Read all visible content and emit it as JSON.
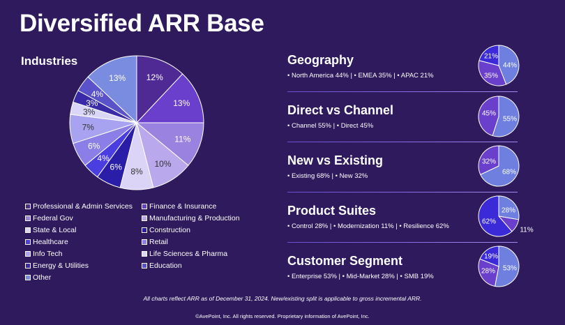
{
  "title": "Diversified ARR Base",
  "industries": {
    "title": "Industries",
    "legend": [
      {
        "label": "Professional & Admin Services",
        "color": "#4f2a94"
      },
      {
        "label": "Finance & Insurance",
        "color": "#6a3fcc"
      },
      {
        "label": "Federal Gov",
        "color": "#9a82e0"
      },
      {
        "label": "Manufacturing & Production",
        "color": "#b9a8ec"
      },
      {
        "label": "State & Local",
        "color": "#dcd4f6"
      },
      {
        "label": "Construction",
        "color": "#2a1ea8"
      },
      {
        "label": "Healthcare",
        "color": "#4b3ee0"
      },
      {
        "label": "Retail",
        "color": "#8b7ee6"
      },
      {
        "label": "Info Tech",
        "color": "#a8a3f0"
      },
      {
        "label": "Life Sciences & Pharma",
        "color": "#d9d6f8"
      },
      {
        "label": "Energy & Utilities",
        "color": "#3a2aa8"
      },
      {
        "label": "Education",
        "color": "#5a52c8"
      },
      {
        "label": "Other",
        "color": "#7a8ce0"
      }
    ]
  },
  "chart_data": [
    {
      "type": "pie",
      "title": "Industries",
      "categories": [
        "Professional & Admin Services",
        "Finance & Insurance",
        "Federal Gov",
        "Manufacturing & Production",
        "State & Local",
        "Construction",
        "Healthcare",
        "Retail",
        "Info Tech",
        "Life Sciences & Pharma",
        "Energy & Utilities",
        "Education",
        "Other"
      ],
      "values": [
        12,
        13,
        11,
        10,
        8,
        6,
        4,
        6,
        7,
        3,
        3,
        4,
        13
      ],
      "labels": [
        "12%",
        "13%",
        "11%",
        "10%",
        "8%",
        "6%",
        "4%",
        "6%",
        "7%",
        "3%",
        "3%",
        "4%",
        "13%"
      ],
      "colors": [
        "#4f2a94",
        "#6a3fcc",
        "#9a82e0",
        "#b9a8ec",
        "#dcd4f6",
        "#2a1ea8",
        "#4b3ee0",
        "#8b7ee6",
        "#a8a3f0",
        "#d9d6f8",
        "#3a2aa8",
        "#5a52c8",
        "#7a8ce0"
      ],
      "label_colors": [
        "#ffffff",
        "#ffffff",
        "#ffffff",
        "#333333",
        "#333333",
        "#ffffff",
        "#ffffff",
        "#ffffff",
        "#333333",
        "#333333",
        "#ffffff",
        "#ffffff",
        "#ffffff"
      ]
    },
    {
      "type": "pie",
      "title": "Geography",
      "categories": [
        "North America",
        "EMEA",
        "APAC"
      ],
      "values": [
        44,
        35,
        21
      ],
      "labels": [
        "44%",
        "35%",
        "21%"
      ],
      "colors": [
        "#6f7fe0",
        "#6a3fcc",
        "#3a2ad8"
      ]
    },
    {
      "type": "pie",
      "title": "Direct vs Channel",
      "categories": [
        "Channel",
        "Direct"
      ],
      "values": [
        55,
        45
      ],
      "labels": [
        "55%",
        "45%"
      ],
      "colors": [
        "#6f7fe0",
        "#6a3fcc"
      ]
    },
    {
      "type": "pie",
      "title": "New vs Existing",
      "categories": [
        "Existing",
        "New"
      ],
      "values": [
        68,
        32
      ],
      "labels": [
        "68%",
        "32%"
      ],
      "colors": [
        "#6f7fe0",
        "#6a3fcc"
      ]
    },
    {
      "type": "pie",
      "title": "Product Suites",
      "categories": [
        "Control",
        "Modernization",
        "Resilience"
      ],
      "values": [
        28,
        11,
        62
      ],
      "labels": [
        "28%",
        "11%",
        "62%"
      ],
      "colors": [
        "#6f7fe0",
        "#6a3fcc",
        "#3a2ad8"
      ]
    },
    {
      "type": "pie",
      "title": "Customer Segment",
      "categories": [
        "Enterprise",
        "Mid-Market",
        "SMB"
      ],
      "values": [
        53,
        28,
        19
      ],
      "labels": [
        "53%",
        "28%",
        "19%"
      ],
      "colors": [
        "#6f7fe0",
        "#6a3fcc",
        "#3a2ad8"
      ]
    }
  ],
  "panels": [
    {
      "title": "Geography",
      "desc": "• North America 44% | • EMEA 35% | • APAC 21%"
    },
    {
      "title": "Direct vs Channel",
      "desc": "• Channel 55% | • Direct 45%"
    },
    {
      "title": "New vs Existing",
      "desc": "• Existing 68% | • New 32%"
    },
    {
      "title": "Product Suites",
      "desc": "• Control 28% | • Modernization 11% | • Resilience 62%"
    },
    {
      "title": "Customer Segment",
      "desc": "• Enterprise 53% | • Mid-Market 28% | • SMB 19%"
    }
  ],
  "footnote": "All charts reflect ARR as of December 31, 2024. New/existing split is applicable to gross incremental ARR.",
  "copyright": "©AvePoint, Inc. All rights reserved. Proprietary information of AvePoint, Inc."
}
